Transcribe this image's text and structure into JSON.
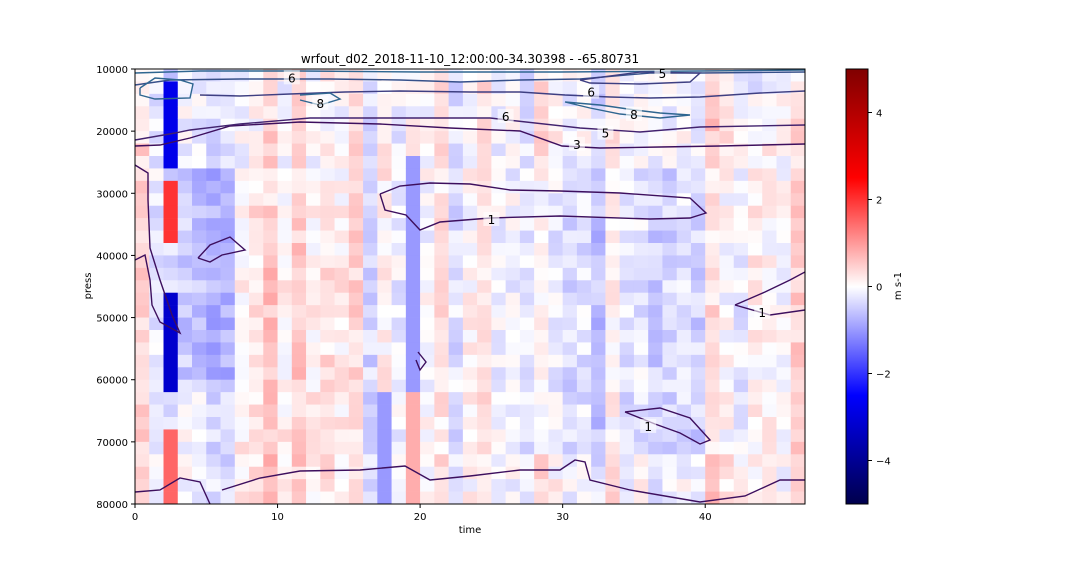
{
  "chart_data": {
    "type": "heatmap",
    "title": "wrfout_d02_2018-11-10_12:00:00-34.30398 - -65.80731",
    "xlabel": "time",
    "ylabel": "press",
    "xlim": [
      0,
      47
    ],
    "ylim": [
      80000,
      10000
    ],
    "xticks": [
      0,
      10,
      20,
      30,
      40
    ],
    "xtick_labels": [
      "0",
      "10",
      "20",
      "30",
      "40"
    ],
    "yticks": [
      10000,
      20000,
      30000,
      40000,
      50000,
      60000,
      70000,
      80000
    ],
    "ytick_labels": [
      "10000",
      "20000",
      "30000",
      "40000",
      "50000",
      "60000",
      "70000",
      "80000"
    ],
    "colorbar": {
      "label": "m s-1",
      "range": [
        -5,
        5
      ],
      "ticks": [
        4,
        2,
        0,
        -2,
        -4
      ],
      "tick_labels": [
        "4",
        "2",
        "0",
        "−2",
        "−4"
      ],
      "colormap": "seismic"
    },
    "heatmap_anomalies": [
      {
        "time": [
          2,
          3
        ],
        "press": [
          12000,
          25000
        ],
        "value": -2.8
      },
      {
        "time": [
          2,
          3
        ],
        "press": [
          28000,
          37000
        ],
        "value": 2.0
      },
      {
        "time": [
          2,
          3
        ],
        "press": [
          45000,
          62000
        ],
        "value": -3.2
      },
      {
        "time": [
          2,
          3
        ],
        "press": [
          67000,
          80000
        ],
        "value": 1.5
      },
      {
        "time": [
          17,
          18
        ],
        "press": [
          62000,
          80000
        ],
        "value": -1.0
      },
      {
        "time": [
          19,
          20
        ],
        "press": [
          23000,
          62000
        ],
        "value": -1.0
      },
      {
        "time": [
          19,
          20
        ],
        "press": [
          62000,
          80000
        ],
        "value": 0.8
      }
    ],
    "contour_labels": [
      "1",
      "3",
      "5",
      "6",
      "8"
    ],
    "contours": [
      {
        "level": 1,
        "label_positions": [
          {
            "time": 25,
            "press": 34300
          },
          {
            "time": 44,
            "press": 49300
          },
          {
            "time": 36,
            "press": 67600
          }
        ]
      },
      {
        "level": 3,
        "label_positions": [
          {
            "time": 31,
            "press": 22200
          }
        ]
      },
      {
        "level": 5,
        "label_positions": [
          {
            "time": 33,
            "press": 20400
          },
          {
            "time": 37,
            "press": 10800
          }
        ]
      },
      {
        "level": 6,
        "label_positions": [
          {
            "time": 26,
            "press": 17700
          },
          {
            "time": 32,
            "press": 13800
          },
          {
            "time": 11,
            "press": 11500
          }
        ]
      },
      {
        "level": 8,
        "label_positions": [
          {
            "time": 35,
            "press": 17400
          },
          {
            "time": 13,
            "press": 15600
          }
        ]
      }
    ]
  }
}
